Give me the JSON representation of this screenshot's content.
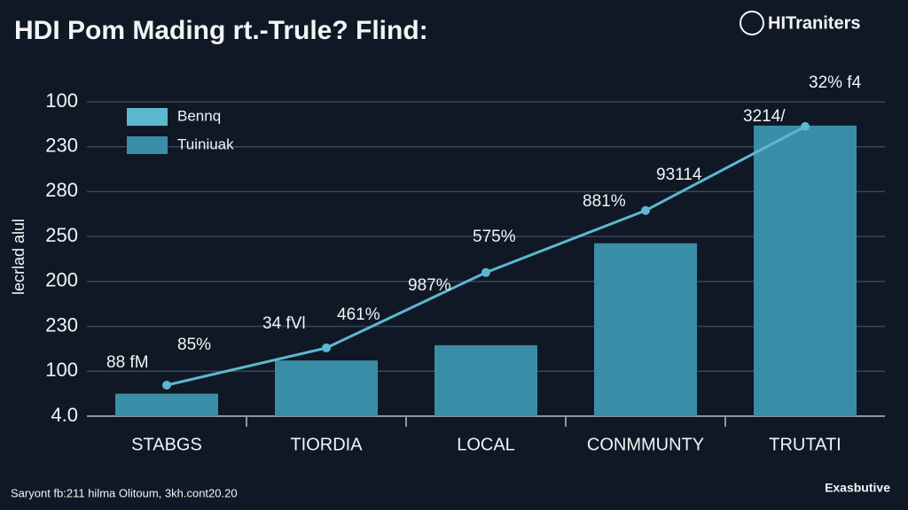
{
  "chart_data": {
    "type": "bar_line",
    "title": "HDI Pom Mading rt.-Trule? Flind:",
    "logo": "HITraniters",
    "y_label": "lecrlad alul",
    "footer": "Saryont fb:211 hilma Olitoum, 3kh.cont20.20",
    "footer_right": "Exasbutive",
    "categories": [
      "STABGS",
      "TIORDIA",
      "LOCAL",
      "CONMMUNTY",
      "TRUTATI"
    ],
    "series": [
      {
        "name": "Tuiniuak",
        "kind": "bar",
        "color": "#3a8da6",
        "values": [
          0.5,
          1.24,
          1.58,
          3.85,
          6.47
        ]
      },
      {
        "name": "Bennq",
        "kind": "line",
        "color": "#5cb8cf",
        "values": [
          0.69,
          1.52,
          3.2,
          4.58,
          6.45
        ]
      }
    ],
    "annotations": [
      "88 fM",
      "85%",
      "34 fVl",
      "461%",
      "987%",
      "575%",
      "881%",
      "93114",
      "3214/",
      "32% f4"
    ],
    "ylim": [
      0,
      7
    ],
    "yticks": [
      {
        "value": 0,
        "label": "4.0"
      },
      {
        "value": 1,
        "label": "100"
      },
      {
        "value": 2,
        "label": "230"
      },
      {
        "value": 3,
        "label": "200"
      },
      {
        "value": 4,
        "label": "250"
      },
      {
        "value": 5,
        "label": "280"
      },
      {
        "value": 6,
        "label": "230"
      },
      {
        "value": 7,
        "label": "100"
      }
    ],
    "grid": true
  }
}
